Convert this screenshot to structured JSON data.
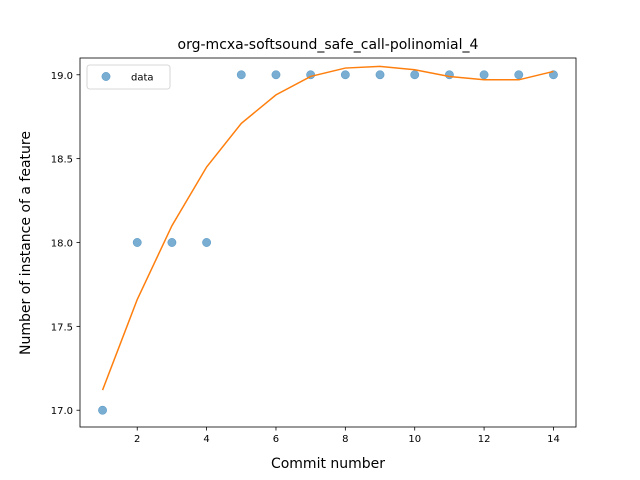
{
  "chart_data": {
    "type": "scatter",
    "title": "org-mcxa-softsound_safe_call-polinomial_4",
    "xlabel": "Commit number",
    "ylabel": "Number of instance of a feature",
    "xlim": [
      0.35,
      14.65
    ],
    "ylim": [
      16.9,
      19.1
    ],
    "xticks": [
      2,
      4,
      6,
      8,
      10,
      12,
      14
    ],
    "yticks": [
      17.0,
      17.5,
      18.0,
      18.5,
      19.0
    ],
    "ytick_labels": [
      "17.0",
      "17.5",
      "18.0",
      "18.5",
      "19.0"
    ],
    "legend_position": "upper-left",
    "series": [
      {
        "name": "data",
        "kind": "points",
        "color": "#1f77b4",
        "x": [
          1,
          2,
          3,
          4,
          5,
          6,
          7,
          8,
          9,
          10,
          11,
          12,
          13,
          14
        ],
        "y": [
          17,
          18,
          18,
          18,
          19,
          19,
          19,
          19,
          19,
          19,
          19,
          19,
          19,
          19
        ]
      },
      {
        "kind": "line",
        "color": "#ff7f0e",
        "x": [
          1,
          2,
          3,
          4,
          5,
          6,
          7,
          8,
          9,
          10,
          11,
          12,
          13,
          14
        ],
        "y": [
          17.12,
          17.66,
          18.1,
          18.45,
          18.71,
          18.88,
          18.99,
          19.04,
          19.05,
          19.03,
          18.99,
          18.97,
          18.97,
          19.02
        ]
      }
    ]
  }
}
